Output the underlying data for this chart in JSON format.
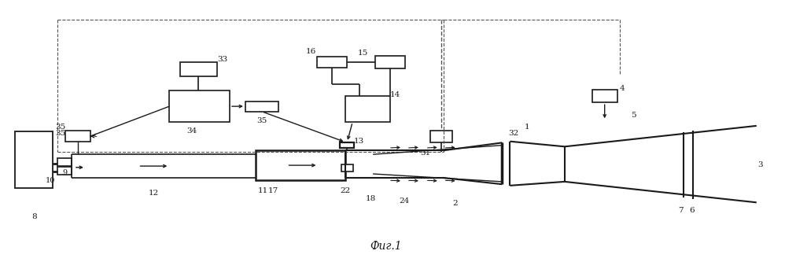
{
  "bg_color": "#ffffff",
  "line_color": "#1a1a1a",
  "title": "Фиг.1",
  "title_fontsize": 10,
  "lw": 1.0
}
